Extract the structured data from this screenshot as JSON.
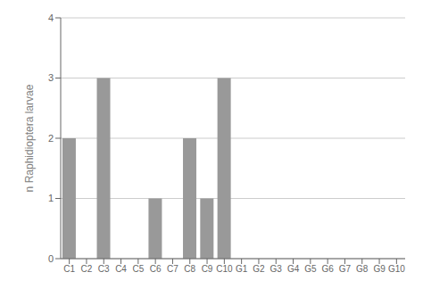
{
  "chart_data": {
    "type": "bar",
    "categories": [
      "C1",
      "C2",
      "C3",
      "C4",
      "C5",
      "C6",
      "C7",
      "C8",
      "C9",
      "C10",
      "G1",
      "G2",
      "G3",
      "G4",
      "G5",
      "G6",
      "G7",
      "G8",
      "G9",
      "G10"
    ],
    "values": [
      2,
      0,
      3,
      0,
      0,
      1,
      0,
      2,
      1,
      3,
      0,
      0,
      0,
      0,
      0,
      0,
      0,
      0,
      0,
      0
    ],
    "color": "#999999",
    "ylabel": "n Raphidioptera larvae",
    "ylim": [
      0,
      4
    ],
    "yticks": [
      0,
      1,
      2,
      3,
      4
    ],
    "grid": true
  }
}
